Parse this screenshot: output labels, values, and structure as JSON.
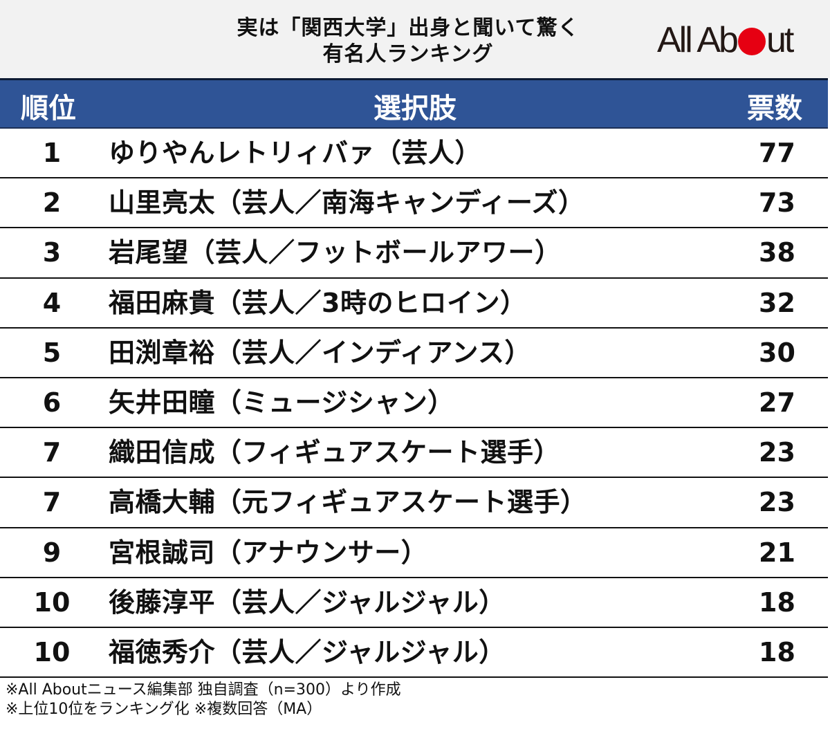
{
  "title": {
    "line1": "実は「関西大学」出身と聞いて驚く",
    "line2": "有名人ランキング"
  },
  "logo": {
    "text_before": "All Ab",
    "text_after": "ut",
    "dot_color": "#e60012"
  },
  "colors": {
    "header_bg": "#2f5496",
    "title_bg": "#f2f2f2",
    "text": "#111111"
  },
  "table": {
    "headers": {
      "rank": "順位",
      "choice": "選択肢",
      "votes": "票数"
    },
    "rows": [
      {
        "rank": "1",
        "name": "ゆりやんレトリィバァ（芸人）",
        "votes": "77"
      },
      {
        "rank": "2",
        "name": "山里亮太（芸人／南海キャンディーズ）",
        "votes": "73"
      },
      {
        "rank": "3",
        "name": "岩尾望（芸人／フットボールアワー）",
        "votes": "38"
      },
      {
        "rank": "4",
        "name": "福田麻貴（芸人／3時のヒロイン）",
        "votes": "32"
      },
      {
        "rank": "5",
        "name": "田渕章裕（芸人／インディアンス）",
        "votes": "30"
      },
      {
        "rank": "6",
        "name": "矢井田瞳（ミュージシャン）",
        "votes": "27"
      },
      {
        "rank": "7",
        "name": "織田信成（フィギュアスケート選手）",
        "votes": "23"
      },
      {
        "rank": "7",
        "name": "高橋大輔（元フィギュアスケート選手）",
        "votes": "23"
      },
      {
        "rank": "9",
        "name": "宮根誠司（アナウンサー）",
        "votes": "21"
      },
      {
        "rank": "10",
        "name": "後藤淳平（芸人／ジャルジャル）",
        "votes": "18"
      },
      {
        "rank": "10",
        "name": "福徳秀介（芸人／ジャルジャル）",
        "votes": "18"
      }
    ]
  },
  "footer": {
    "note1": "※All Aboutニュース編集部 独自調査（n=300）より作成",
    "note2": "※上位10位をランキング化 ※複数回答（MA）"
  },
  "chart_data": {
    "type": "table",
    "title": "実は「関西大学」出身と聞いて驚く有名人ランキング",
    "columns": [
      "順位",
      "選択肢",
      "票数"
    ],
    "categories": [
      "ゆりやんレトリィバァ（芸人）",
      "山里亮太（芸人／南海キャンディーズ）",
      "岩尾望（芸人／フットボールアワー）",
      "福田麻貴（芸人／3時のヒロイン）",
      "田渕章裕（芸人／インディアンス）",
      "矢井田瞳（ミュージシャン）",
      "織田信成（フィギュアスケート選手）",
      "高橋大輔（元フィギュアスケート選手）",
      "宮根誠司（アナウンサー）",
      "後藤淳平（芸人／ジャルジャル）",
      "福徳秀介（芸人／ジャルジャル）"
    ],
    "ranks": [
      1,
      2,
      3,
      4,
      5,
      6,
      7,
      7,
      9,
      10,
      10
    ],
    "values": [
      77,
      73,
      38,
      32,
      30,
      27,
      23,
      23,
      21,
      18,
      18
    ],
    "notes": [
      "※All Aboutニュース編集部 独自調査（n=300）より作成",
      "※上位10位をランキング化 ※複数回答（MA）"
    ]
  }
}
